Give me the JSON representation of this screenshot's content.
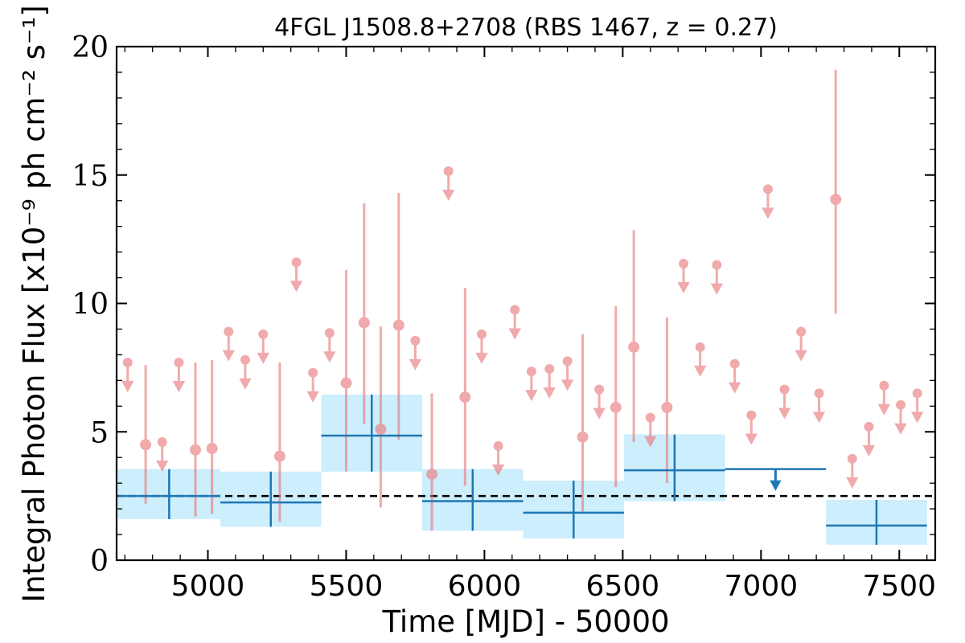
{
  "chart_data": {
    "type": "scatter",
    "title": "4FGL J1508.8+2708 (RBS 1467, z = 0.27)",
    "xlabel": "Time [MJD] - 50000",
    "ylabel": "Integral Photon Flux [x10⁻⁹ ph cm⁻² s⁻¹]",
    "xlim": [
      4670,
      7630
    ],
    "ylim": [
      0,
      20
    ],
    "xticks": [
      "5000",
      "5500",
      "6000",
      "6500",
      "7000",
      "7500"
    ],
    "yticks": [
      "0",
      "5",
      "10",
      "15",
      "20"
    ],
    "average_flux": 2.5,
    "colors": {
      "fine_bins": "#e8777a",
      "coarse_bins": "#1f77b4",
      "coarse_band": "#cdeefc",
      "average_line": "#000000"
    },
    "coarse_bins": [
      {
        "x_lo": 4675,
        "x_hi": 5045,
        "y": 2.5,
        "y_lo": 1.6,
        "y_hi": 3.55,
        "upper_limit": false
      },
      {
        "x_lo": 5045,
        "x_hi": 5410,
        "y": 2.25,
        "y_lo": 1.3,
        "y_hi": 3.45,
        "upper_limit": false
      },
      {
        "x_lo": 5410,
        "x_hi": 5775,
        "y": 4.85,
        "y_lo": 3.45,
        "y_hi": 6.45,
        "upper_limit": false
      },
      {
        "x_lo": 5775,
        "x_hi": 6140,
        "y": 2.3,
        "y_lo": 1.15,
        "y_hi": 3.55,
        "upper_limit": false
      },
      {
        "x_lo": 6140,
        "x_hi": 6505,
        "y": 1.85,
        "y_lo": 0.85,
        "y_hi": 3.1,
        "upper_limit": false
      },
      {
        "x_lo": 6505,
        "x_hi": 6870,
        "y": 3.5,
        "y_lo": 2.3,
        "y_hi": 4.9,
        "upper_limit": false
      },
      {
        "x_lo": 6870,
        "x_hi": 7235,
        "y": 3.55,
        "upper_limit": true
      },
      {
        "x_lo": 7235,
        "x_hi": 7600,
        "y": 1.35,
        "y_lo": 0.6,
        "y_hi": 2.35,
        "upper_limit": false
      }
    ],
    "fine_bins": [
      {
        "x": 4710,
        "y": 7.7,
        "upper_limit": true
      },
      {
        "x": 4775,
        "y": 4.5,
        "y_lo": 2.2,
        "y_hi": 7.6,
        "upper_limit": false
      },
      {
        "x": 4835,
        "y": 4.6,
        "upper_limit": true
      },
      {
        "x": 4895,
        "y": 7.7,
        "upper_limit": true
      },
      {
        "x": 4955,
        "y": 4.3,
        "y_lo": 1.7,
        "y_hi": 7.7,
        "upper_limit": false
      },
      {
        "x": 5015,
        "y": 4.35,
        "y_lo": 1.8,
        "y_hi": 7.8,
        "upper_limit": false
      },
      {
        "x": 5075,
        "y": 8.9,
        "upper_limit": true
      },
      {
        "x": 5135,
        "y": 7.8,
        "upper_limit": true
      },
      {
        "x": 5200,
        "y": 8.8,
        "upper_limit": true
      },
      {
        "x": 5260,
        "y": 4.05,
        "y_lo": 1.5,
        "y_hi": 7.7,
        "upper_limit": false
      },
      {
        "x": 5320,
        "y": 11.6,
        "upper_limit": true
      },
      {
        "x": 5380,
        "y": 7.3,
        "upper_limit": true
      },
      {
        "x": 5440,
        "y": 8.85,
        "upper_limit": true
      },
      {
        "x": 5500,
        "y": 6.9,
        "y_lo": 3.45,
        "y_hi": 11.3,
        "upper_limit": false
      },
      {
        "x": 5565,
        "y": 9.25,
        "y_lo": 5.3,
        "y_hi": 13.9,
        "upper_limit": false
      },
      {
        "x": 5625,
        "y": 5.1,
        "y_lo": 2.05,
        "y_hi": 9.1,
        "upper_limit": false
      },
      {
        "x": 5690,
        "y": 9.15,
        "y_lo": 4.7,
        "y_hi": 14.3,
        "upper_limit": false
      },
      {
        "x": 5750,
        "y": 8.55,
        "upper_limit": true
      },
      {
        "x": 5810,
        "y": 3.35,
        "y_lo": 1.15,
        "y_hi": 6.5,
        "upper_limit": false
      },
      {
        "x": 5870,
        "y": 15.15,
        "upper_limit": true
      },
      {
        "x": 5930,
        "y": 6.35,
        "y_lo": 2.9,
        "y_hi": 10.6,
        "upper_limit": false
      },
      {
        "x": 5990,
        "y": 8.8,
        "upper_limit": true
      },
      {
        "x": 6050,
        "y": 4.45,
        "upper_limit": true
      },
      {
        "x": 6110,
        "y": 9.75,
        "upper_limit": true
      },
      {
        "x": 6170,
        "y": 7.35,
        "upper_limit": true
      },
      {
        "x": 6235,
        "y": 7.45,
        "upper_limit": true
      },
      {
        "x": 6300,
        "y": 7.75,
        "upper_limit": true
      },
      {
        "x": 6355,
        "y": 4.8,
        "y_lo": 1.9,
        "y_hi": 8.8,
        "upper_limit": false
      },
      {
        "x": 6415,
        "y": 6.65,
        "upper_limit": true
      },
      {
        "x": 6475,
        "y": 5.95,
        "y_lo": 2.85,
        "y_hi": 9.9,
        "upper_limit": false
      },
      {
        "x": 6540,
        "y": 8.3,
        "y_lo": 4.6,
        "y_hi": 12.85,
        "upper_limit": false
      },
      {
        "x": 6600,
        "y": 5.55,
        "upper_limit": true
      },
      {
        "x": 6660,
        "y": 5.95,
        "y_lo": 3.0,
        "y_hi": 9.45,
        "upper_limit": false
      },
      {
        "x": 6720,
        "y": 11.55,
        "upper_limit": true
      },
      {
        "x": 6780,
        "y": 8.3,
        "upper_limit": true
      },
      {
        "x": 6840,
        "y": 11.5,
        "upper_limit": true
      },
      {
        "x": 6905,
        "y": 7.65,
        "upper_limit": true
      },
      {
        "x": 6965,
        "y": 5.65,
        "upper_limit": true
      },
      {
        "x": 7025,
        "y": 14.45,
        "upper_limit": true
      },
      {
        "x": 7085,
        "y": 6.65,
        "upper_limit": true
      },
      {
        "x": 7145,
        "y": 8.9,
        "upper_limit": true
      },
      {
        "x": 7210,
        "y": 6.5,
        "upper_limit": true
      },
      {
        "x": 7270,
        "y": 14.05,
        "y_lo": 9.6,
        "y_hi": 19.1,
        "upper_limit": false
      },
      {
        "x": 7330,
        "y": 3.95,
        "upper_limit": true
      },
      {
        "x": 7390,
        "y": 5.2,
        "upper_limit": true
      },
      {
        "x": 7445,
        "y": 6.8,
        "upper_limit": true
      },
      {
        "x": 7505,
        "y": 6.05,
        "upper_limit": true
      },
      {
        "x": 7565,
        "y": 6.5,
        "upper_limit": true
      }
    ]
  }
}
